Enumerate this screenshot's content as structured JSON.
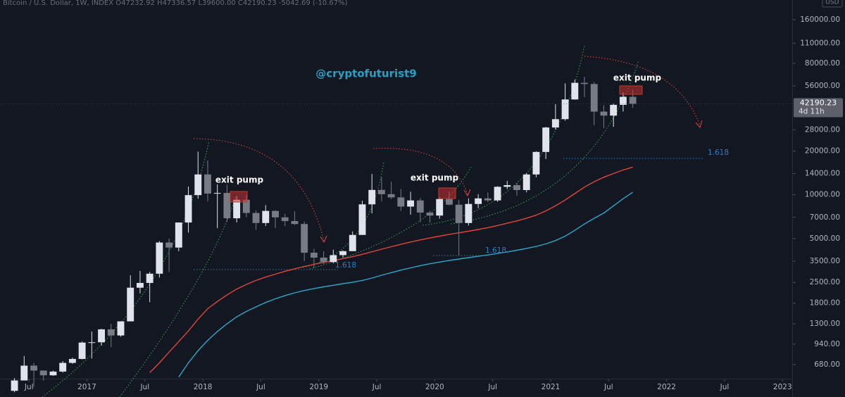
{
  "chart_data": {
    "type": "candlestick",
    "title": "Bitcoin / U.S. Dollar, 1W, INDEX O47232.92 H47336.57 L39600.00 C42190.23 -5042.69 (-10.67%)",
    "watermark": "@cryptofuturist9",
    "currency": "USD",
    "log_scale": true,
    "up_color": "#e0e3eb",
    "down_color": "#787b86",
    "x": [
      "2016-05",
      "2016-06",
      "2016-07",
      "2016-08",
      "2016-09",
      "2016-10",
      "2016-11",
      "2016-12",
      "2017-01",
      "2017-02",
      "2017-03",
      "2017-04",
      "2017-05",
      "2017-06",
      "2017-07",
      "2017-08",
      "2017-09",
      "2017-10",
      "2017-11",
      "2017-12",
      "2018-01",
      "2018-02",
      "2018-03",
      "2018-04",
      "2018-05",
      "2018-06",
      "2018-07",
      "2018-08",
      "2018-09",
      "2018-10",
      "2018-11",
      "2018-12",
      "2019-01",
      "2019-02",
      "2019-03",
      "2019-04",
      "2019-05",
      "2019-06",
      "2019-07",
      "2019-08",
      "2019-09",
      "2019-10",
      "2019-11",
      "2019-12",
      "2020-01",
      "2020-02",
      "2020-03",
      "2020-04",
      "2020-05",
      "2020-06",
      "2020-07",
      "2020-08",
      "2020-09",
      "2020-10",
      "2020-11",
      "2020-12",
      "2021-01",
      "2021-02",
      "2021-03",
      "2021-04",
      "2021-05",
      "2021-06",
      "2021-07",
      "2021-08",
      "2021-09"
    ],
    "open": [
      450,
      530,
      670,
      620,
      575,
      610,
      700,
      745,
      965,
      970,
      1190,
      1080,
      1350,
      2300,
      2480,
      2870,
      4700,
      4340,
      6450,
      9950,
      13800,
      10200,
      10300,
      6900,
      9250,
      7500,
      6400,
      7750,
      7000,
      6600,
      6300,
      4000,
      3700,
      3450,
      3850,
      4100,
      5300,
      8600,
      10800,
      10100,
      9600,
      8300,
      9150,
      7550,
      7200,
      9350,
      8550,
      6400,
      8650,
      9450,
      9150,
      11350,
      11650,
      10780,
      13800,
      19700,
      29000,
      33100,
      45200,
      58800,
      57700,
      37300,
      35000,
      41500,
      47100
    ],
    "high": [
      550,
      780,
      700,
      620,
      620,
      720,
      760,
      980,
      1150,
      1200,
      1300,
      1350,
      2800,
      3000,
      2950,
      4800,
      5000,
      6450,
      11400,
      19800,
      17200,
      11800,
      11700,
      9800,
      9950,
      7800,
      8500,
      7800,
      7400,
      7700,
      6550,
      4250,
      4100,
      4200,
      4150,
      5600,
      9100,
      13900,
      13200,
      12300,
      10950,
      10500,
      9500,
      7750,
      9600,
      10500,
      9200,
      9450,
      10100,
      10400,
      11450,
      12450,
      12100,
      14100,
      19900,
      29300,
      41900,
      58300,
      61800,
      64800,
      59500,
      41300,
      42300,
      50500,
      52900
    ],
    "low": [
      440,
      530,
      480,
      530,
      570,
      600,
      690,
      740,
      750,
      920,
      900,
      1060,
      1350,
      2100,
      1830,
      2700,
      2950,
      4100,
      5500,
      9400,
      9000,
      5900,
      6500,
      6450,
      7000,
      5750,
      6100,
      5900,
      6100,
      6200,
      3500,
      3150,
      3350,
      3380,
      3700,
      4100,
      5300,
      7450,
      9000,
      9350,
      7750,
      7300,
      6500,
      6450,
      6850,
      8450,
      3850,
      6150,
      8100,
      8900,
      8950,
      10950,
      9850,
      10400,
      13200,
      17600,
      28100,
      32300,
      45000,
      47000,
      30000,
      28800,
      29300,
      37300,
      39600
    ],
    "close": [
      530,
      670,
      620,
      575,
      610,
      700,
      745,
      965,
      970,
      1190,
      1080,
      1350,
      2300,
      2480,
      2870,
      4700,
      4340,
      6450,
      9950,
      13800,
      10200,
      10300,
      6900,
      9250,
      7500,
      6400,
      7750,
      7000,
      6600,
      6300,
      4000,
      3700,
      3450,
      3850,
      4100,
      5300,
      8600,
      10800,
      10100,
      9600,
      8300,
      9150,
      7550,
      7200,
      9350,
      8550,
      6400,
      8650,
      9450,
      9150,
      11350,
      11650,
      10780,
      13800,
      19700,
      29000,
      33100,
      45200,
      58800,
      57700,
      37300,
      35000,
      41500,
      47100,
      42190.23
    ],
    "lines": [
      {
        "color": "#e0463a",
        "values": [
          null,
          null,
          null,
          null,
          null,
          null,
          null,
          null,
          null,
          null,
          null,
          null,
          null,
          null,
          600,
          700,
          830,
          980,
          1160,
          1400,
          1650,
          1850,
          2050,
          2250,
          2420,
          2580,
          2720,
          2850,
          2980,
          3100,
          3220,
          3330,
          3430,
          3530,
          3640,
          3760,
          3900,
          4060,
          4230,
          4400,
          4570,
          4740,
          4900,
          5050,
          5200,
          5350,
          5480,
          5620,
          5780,
          5950,
          6150,
          6380,
          6620,
          6900,
          7250,
          7750,
          8400,
          9200,
          10200,
          11300,
          12300,
          13200,
          14000,
          14800,
          15500
        ]
      },
      {
        "color": "#2aa8c9",
        "values": [
          null,
          null,
          null,
          null,
          null,
          null,
          null,
          null,
          null,
          null,
          null,
          null,
          null,
          null,
          null,
          null,
          null,
          560,
          700,
          850,
          1000,
          1150,
          1300,
          1450,
          1580,
          1700,
          1820,
          1930,
          2030,
          2120,
          2200,
          2270,
          2330,
          2390,
          2450,
          2510,
          2580,
          2680,
          2800,
          2920,
          3040,
          3150,
          3260,
          3360,
          3450,
          3540,
          3620,
          3700,
          3780,
          3860,
          3950,
          4050,
          4160,
          4280,
          4420,
          4600,
          4850,
          5200,
          5700,
          6300,
          6900,
          7500,
          8400,
          9400,
          10400
        ]
      }
    ],
    "xlim": [
      "2016-04",
      "2023-02"
    ],
    "xticks": [
      {
        "value": "2016-07",
        "label": "Jul"
      },
      {
        "value": "2017-01",
        "label": "2017"
      },
      {
        "value": "2017-07",
        "label": "Jul"
      },
      {
        "value": "2018-01",
        "label": "2018"
      },
      {
        "value": "2018-07",
        "label": "Jul"
      },
      {
        "value": "2019-01",
        "label": "2019"
      },
      {
        "value": "2019-07",
        "label": "Jul"
      },
      {
        "value": "2020-01",
        "label": "2020"
      },
      {
        "value": "2020-07",
        "label": "Jul"
      },
      {
        "value": "2021-01",
        "label": "2021"
      },
      {
        "value": "2021-07",
        "label": "Jul"
      },
      {
        "value": "2022-01",
        "label": "2022"
      },
      {
        "value": "2022-07",
        "label": "Jul"
      },
      {
        "value": "2023-01",
        "label": "2023"
      }
    ],
    "ylim": [
      545,
      218000
    ],
    "yticks": [
      {
        "value": 160000,
        "label": "160000.00"
      },
      {
        "value": 110000,
        "label": "110000.00"
      },
      {
        "value": 80000,
        "label": "80000.00"
      },
      {
        "value": 56000,
        "label": "56000.00"
      },
      {
        "value": 28000,
        "label": "28000.00"
      },
      {
        "value": 20000,
        "label": "20000.00"
      },
      {
        "value": 14000,
        "label": "14000.00"
      },
      {
        "value": 10000,
        "label": "10000.00"
      },
      {
        "value": 7000,
        "label": "7000.00"
      },
      {
        "value": 5000,
        "label": "5000.00"
      },
      {
        "value": 3500,
        "label": "3500.00"
      },
      {
        "value": 2500,
        "label": "2500.00"
      },
      {
        "value": 1800,
        "label": "1800.00"
      },
      {
        "value": 1300,
        "label": "1300.00"
      },
      {
        "value": 940,
        "label": "940.00"
      },
      {
        "value": 680,
        "label": "680.00"
      }
    ],
    "last_price": 42190.23,
    "countdown": "4d 11h",
    "exit_labels": [
      "exit pump",
      "exit pump",
      "exit pump"
    ],
    "fib_labels": [
      "1.618",
      "1.618",
      "1.618"
    ]
  }
}
